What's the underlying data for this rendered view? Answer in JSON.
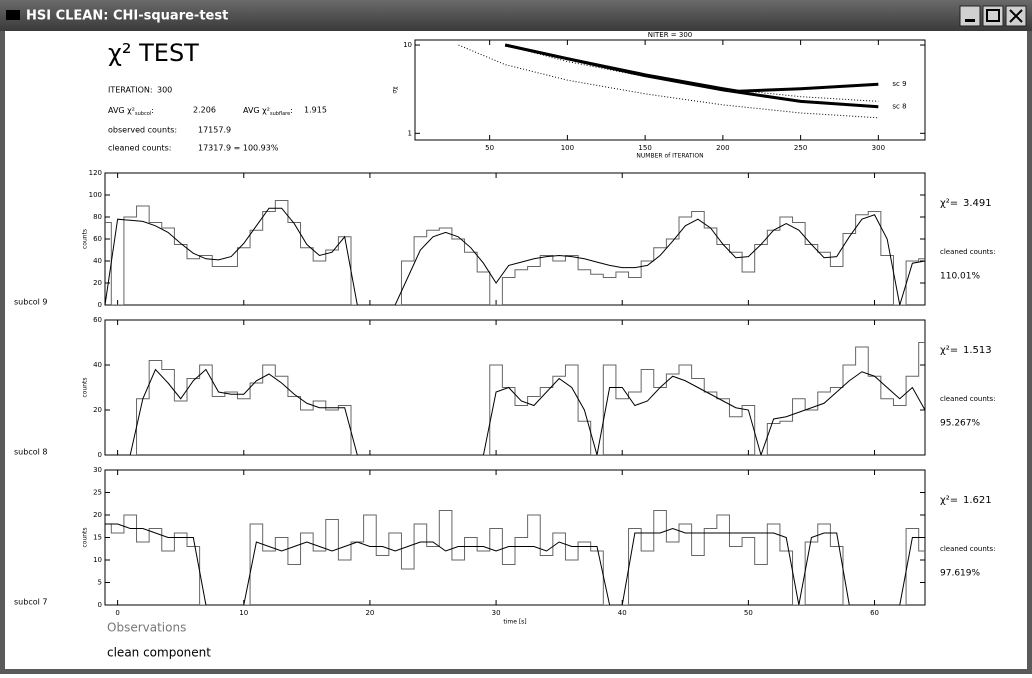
{
  "window": {
    "title": "HSI CLEAN: CHI-square-test"
  },
  "header": {
    "title": "χ² TEST",
    "iteration_label": "ITERATION:",
    "iteration": "300",
    "avg_subcol": {
      "label": "AVG χ²",
      "sub": "subcol",
      "colon": ":",
      "value": "2.206"
    },
    "avg_subflare": {
      "label": "AVG χ²",
      "sub": "subflare",
      "colon": ":",
      "value": "1.915"
    },
    "observed_label": "observed counts:",
    "observed": "17157.9",
    "cleaned_label": "cleaned counts:",
    "cleaned": "17317.9 = 100.93%"
  },
  "chart_data": [
    {
      "type": "line",
      "title": "NITER = 300",
      "xlabel": "NUMBER of ITERATION",
      "ylabel": "σχ",
      "log_y": true,
      "xlim": [
        2,
        330
      ],
      "ylim": [
        0.84,
        11.4
      ],
      "xticks": [
        50,
        100,
        150,
        200,
        250,
        300
      ],
      "yticks": [
        1,
        10
      ],
      "series": [
        {
          "name": "sc 9",
          "color": "#000000",
          "line_width": 3,
          "x": [
            60,
            100,
            150,
            200,
            210,
            250,
            300
          ],
          "values": [
            10,
            7,
            4.6,
            3.2,
            3.0,
            3.2,
            3.6
          ]
        },
        {
          "name": "sc 8",
          "color": "#000000",
          "line_width": 3,
          "x": [
            60,
            100,
            150,
            200,
            250,
            300
          ],
          "values": [
            10,
            7,
            4.5,
            3.1,
            2.3,
            2.0
          ]
        },
        {
          "color": "#000000",
          "dotted": true,
          "x": [
            30,
            60,
            100,
            150,
            200,
            250,
            300
          ],
          "values": [
            10,
            6,
            4,
            2.8,
            2.1,
            1.7,
            1.5
          ]
        },
        {
          "color": "#000000",
          "dotted": true,
          "x": [
            60,
            100,
            150,
            200,
            250,
            300
          ],
          "values": [
            10,
            6.5,
            4.4,
            3.2,
            2.6,
            2.3
          ]
        }
      ]
    },
    {
      "type": "line",
      "label": "subcol 9",
      "ylabel": "counts",
      "xlim": [
        -1,
        64
      ],
      "ylim": [
        0,
        120
      ],
      "yticks": [
        0,
        20,
        40,
        60,
        80,
        100,
        120
      ],
      "stats": {
        "chi_label": "χ²=",
        "chi": "3.491",
        "cleaned_label": "cleaned counts:",
        "cleaned": "110.01%"
      },
      "x": [
        -1,
        0,
        1,
        2,
        3,
        4,
        5,
        6,
        7,
        8,
        9,
        10,
        11,
        12,
        13,
        14,
        15,
        16,
        17,
        18,
        19,
        20,
        21,
        22,
        23,
        24,
        25,
        26,
        27,
        28,
        29,
        30,
        31,
        32,
        33,
        34,
        35,
        36,
        37,
        38,
        39,
        40,
        41,
        42,
        43,
        44,
        45,
        46,
        47,
        48,
        49,
        50,
        51,
        52,
        53,
        54,
        55,
        56,
        57,
        58,
        59,
        60,
        61,
        62,
        63,
        64
      ],
      "series": [
        {
          "color": "#666666",
          "step": true,
          "values": [
            75,
            0,
            80,
            90,
            75,
            70,
            55,
            42,
            45,
            35,
            35,
            52,
            68,
            85,
            95,
            75,
            52,
            40,
            50,
            62,
            0,
            0,
            0,
            0,
            40,
            62,
            68,
            70,
            60,
            48,
            30,
            0,
            25,
            32,
            35,
            45,
            40,
            45,
            32,
            28,
            25,
            30,
            25,
            40,
            52,
            60,
            80,
            85,
            70,
            55,
            48,
            30,
            55,
            68,
            80,
            75,
            55,
            48,
            35,
            65,
            82,
            85,
            45,
            0,
            40,
            42
          ]
        },
        {
          "color": "#000000",
          "values": [
            0,
            78,
            77,
            76,
            72,
            66,
            56,
            47,
            42,
            41,
            44,
            56,
            72,
            88,
            88,
            74,
            55,
            45,
            48,
            62,
            0,
            0,
            0,
            0,
            25,
            50,
            62,
            66,
            62,
            52,
            38,
            20,
            36,
            39,
            42,
            44,
            45,
            44,
            42,
            39,
            36,
            34,
            34,
            36,
            45,
            58,
            72,
            78,
            70,
            55,
            43,
            44,
            55,
            68,
            74,
            68,
            55,
            43,
            44,
            62,
            78,
            82,
            60,
            0,
            38,
            40
          ]
        }
      ]
    },
    {
      "type": "line",
      "label": "subcol 8",
      "ylabel": "counts",
      "xlim": [
        -1,
        64
      ],
      "ylim": [
        0,
        60
      ],
      "yticks": [
        0,
        20,
        40,
        60
      ],
      "stats": {
        "chi_label": "χ²=",
        "chi": "1.513",
        "cleaned_label": "cleaned counts:",
        "cleaned": "95.267%"
      },
      "x": [
        -1,
        0,
        1,
        2,
        3,
        4,
        5,
        6,
        7,
        8,
        9,
        10,
        11,
        12,
        13,
        14,
        15,
        16,
        17,
        18,
        19,
        20,
        21,
        22,
        23,
        24,
        25,
        26,
        27,
        28,
        29,
        30,
        31,
        32,
        33,
        34,
        35,
        36,
        37,
        38,
        39,
        40,
        41,
        42,
        43,
        44,
        45,
        46,
        47,
        48,
        49,
        50,
        51,
        52,
        53,
        54,
        55,
        56,
        57,
        58,
        59,
        60,
        61,
        62,
        63,
        64
      ],
      "series": [
        {
          "color": "#666666",
          "step": true,
          "values": [
            0,
            0,
            0,
            25,
            42,
            38,
            24,
            34,
            40,
            26,
            28,
            25,
            32,
            40,
            35,
            26,
            20,
            24,
            20,
            22,
            0,
            0,
            0,
            0,
            0,
            0,
            0,
            0,
            0,
            0,
            0,
            40,
            30,
            22,
            26,
            30,
            35,
            40,
            15,
            0,
            40,
            25,
            28,
            38,
            30,
            36,
            40,
            34,
            28,
            25,
            17,
            22,
            0,
            14,
            15,
            25,
            20,
            28,
            30,
            40,
            48,
            35,
            25,
            22,
            35,
            50
          ]
        },
        {
          "color": "#000000",
          "values": [
            0,
            0,
            0,
            25,
            38,
            32,
            25,
            33,
            38,
            28,
            27,
            27,
            33,
            36,
            32,
            27,
            23,
            21,
            21,
            21,
            0,
            0,
            0,
            0,
            0,
            0,
            0,
            0,
            0,
            0,
            0,
            28,
            30,
            24,
            22,
            28,
            34,
            30,
            20,
            0,
            30,
            30,
            22,
            24,
            30,
            35,
            33,
            30,
            27,
            24,
            21,
            20,
            0,
            16,
            17,
            19,
            21,
            23,
            28,
            33,
            37,
            35,
            30,
            25,
            30,
            20
          ]
        }
      ]
    },
    {
      "type": "line",
      "label": "subcol 7",
      "ylabel": "counts",
      "xlabel": "time [s]",
      "xlim": [
        -1,
        64
      ],
      "ylim": [
        0,
        30
      ],
      "yticks": [
        0,
        5,
        10,
        15,
        20,
        25,
        30
      ],
      "xticks": [
        0,
        10,
        20,
        30,
        40,
        50,
        60
      ],
      "stats": {
        "chi_label": "χ²=",
        "chi": "1.621",
        "cleaned_label": "cleaned counts:",
        "cleaned": "97.619%"
      },
      "x": [
        -1,
        0,
        1,
        2,
        3,
        4,
        5,
        6,
        7,
        8,
        9,
        10,
        11,
        12,
        13,
        14,
        15,
        16,
        17,
        18,
        19,
        20,
        21,
        22,
        23,
        24,
        25,
        26,
        27,
        28,
        29,
        30,
        31,
        32,
        33,
        34,
        35,
        36,
        37,
        38,
        39,
        40,
        41,
        42,
        43,
        44,
        45,
        46,
        47,
        48,
        49,
        50,
        51,
        52,
        53,
        54,
        55,
        56,
        57,
        58,
        59,
        60,
        61,
        62,
        63,
        64
      ],
      "series": [
        {
          "color": "#666666",
          "step": true,
          "values": [
            18,
            16,
            20,
            14,
            17,
            12,
            16,
            13,
            0,
            0,
            0,
            0,
            18,
            12,
            15,
            9,
            16,
            12,
            19,
            10,
            14,
            20,
            11,
            16,
            8,
            18,
            13,
            21,
            10,
            15,
            12,
            17,
            9,
            15,
            20,
            11,
            16,
            10,
            14,
            12,
            0,
            0,
            17,
            12,
            21,
            14,
            18,
            11,
            17,
            20,
            13,
            15,
            9,
            18,
            12,
            0,
            14,
            18,
            13,
            0,
            0,
            0,
            0,
            0,
            17,
            12
          ]
        },
        {
          "color": "#000000",
          "values": [
            18,
            18,
            17,
            17,
            16,
            15,
            15,
            15,
            0,
            0,
            0,
            0,
            14,
            13,
            12,
            13,
            14,
            13,
            12,
            13,
            14,
            13,
            13,
            12,
            13,
            14,
            14,
            12,
            13,
            13,
            13,
            12,
            13,
            13,
            13,
            12,
            14,
            13,
            13,
            13,
            0,
            0,
            16,
            16,
            16,
            17,
            16,
            16,
            16,
            16,
            16,
            16,
            16,
            16,
            15,
            0,
            15,
            16,
            16,
            0,
            0,
            0,
            0,
            0,
            15,
            15
          ]
        }
      ]
    }
  ],
  "legend": {
    "observations": "Observations",
    "clean": "clean component"
  }
}
